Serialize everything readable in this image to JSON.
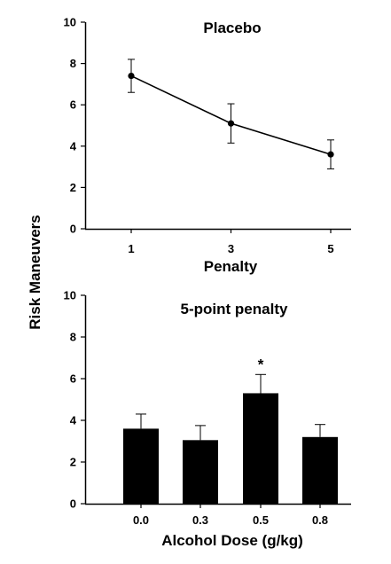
{
  "shared": {
    "ylabel": "Risk Maneuvers"
  },
  "chart_data": [
    {
      "type": "line",
      "title": "Placebo",
      "xlabel": "Penalty",
      "ylabel": "Risk Maneuvers",
      "x": [
        1,
        3,
        5
      ],
      "x_ticks": [
        "1",
        "3",
        "5"
      ],
      "series": [
        {
          "values": [
            7.4,
            5.1,
            3.6
          ],
          "error": [
            0.8,
            0.95,
            0.7
          ]
        }
      ],
      "ylim": [
        0,
        10
      ],
      "y_ticks": [
        "0",
        "2",
        "4",
        "6",
        "8",
        "10"
      ],
      "grid": false
    },
    {
      "type": "bar",
      "title": "5-point penalty",
      "xlabel": "Alcohol Dose (g/kg)",
      "ylabel": "Risk Maneuvers",
      "categories": [
        "0.0",
        "0.3",
        "0.5",
        "0.8"
      ],
      "values": [
        3.6,
        3.05,
        5.3,
        3.2
      ],
      "error": [
        0.7,
        0.7,
        0.9,
        0.6
      ],
      "annotations": [
        {
          "category": "0.5",
          "text": "*"
        }
      ],
      "ylim": [
        0,
        10
      ],
      "y_ticks": [
        "0",
        "2",
        "4",
        "6",
        "8",
        "10"
      ],
      "grid": false
    }
  ]
}
